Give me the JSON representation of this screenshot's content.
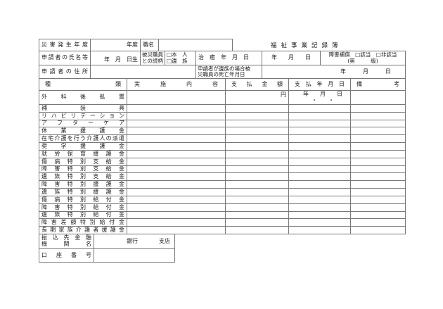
{
  "title": "福祉事業記録簿",
  "header": {
    "disaster_year_label": "災害発生年度",
    "year_suffix": "年度",
    "job_title_label": "職名",
    "applicant_name_label": "申請者の氏名等",
    "birth_date": "年　月　日生",
    "relation_label_1": "被災職員",
    "relation_label_2": "との続柄",
    "relation_option_self": "□本　人",
    "relation_option_family": "□遺　族",
    "cure_label": "治　癒　年　月　日",
    "cure_value": "年　　月　　日",
    "disability_label": "障害補償　□該当　□非該当",
    "disability_grade": "(第　　　級)",
    "address_label": "申請者の住所",
    "death_label_1": "申請者が遺族の場合被",
    "death_label_2": "災職員の死亡年月日",
    "death_value": "年　　　月　　　日"
  },
  "table": {
    "columns": [
      "種類",
      "実施内容",
      "支払金額",
      "支払年月日",
      "備考"
    ],
    "first_row": {
      "type": "外科後処置",
      "amount_unit": "円",
      "date": "年　　月　　日",
      "date_dots": "・　　・"
    },
    "rows": [
      "補装具",
      "リハビリテーション",
      "アフターケア",
      "休業援護金",
      "在宅介護を行う介護人の派遣",
      "奨学援護金",
      "就労保育援護金",
      "傷病特別支給金",
      "障害特別支給金",
      "遺族特別支給金",
      "障害特別援護金",
      "遺族特別援護金",
      "傷病特別給付金",
      "障害特別給付金",
      "遺族特別給付金",
      "障害差額特別給付金",
      "長期家族介護者援護金"
    ]
  },
  "bank": {
    "institution_label_1": "振込先金融",
    "institution_label_2": "機関名",
    "bank_suffix": "銀行",
    "branch_suffix": "支店",
    "account_label": "口座番号"
  }
}
